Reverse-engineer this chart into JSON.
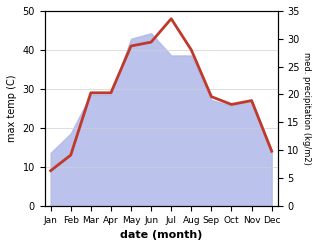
{
  "months": [
    "Jan",
    "Feb",
    "Mar",
    "Apr",
    "May",
    "Jun",
    "Jul",
    "Aug",
    "Sep",
    "Oct",
    "Nov",
    "Dec"
  ],
  "month_indices": [
    0,
    1,
    2,
    3,
    4,
    5,
    6,
    7,
    8,
    9,
    10,
    11
  ],
  "temperature": [
    9,
    13,
    29,
    29,
    41,
    42,
    48,
    40,
    28,
    26,
    27,
    14
  ],
  "precipitation": [
    9.5,
    13,
    20,
    20,
    30,
    31,
    27,
    27,
    19,
    18,
    19,
    10
  ],
  "temp_ylim": [
    0,
    50
  ],
  "precip_ylim": [
    0,
    35
  ],
  "temp_color": "#c0392b",
  "precip_fill_color": "#b0b8e8",
  "xlabel": "date (month)",
  "ylabel_left": "max temp (C)",
  "ylabel_right": "med. precipitation (kg/m2)",
  "background_color": "#ffffff",
  "grid_color": "#d0d0d0",
  "temp_yticks": [
    0,
    10,
    20,
    30,
    40,
    50
  ],
  "precip_yticks": [
    0,
    5,
    10,
    15,
    20,
    25,
    30,
    35
  ]
}
